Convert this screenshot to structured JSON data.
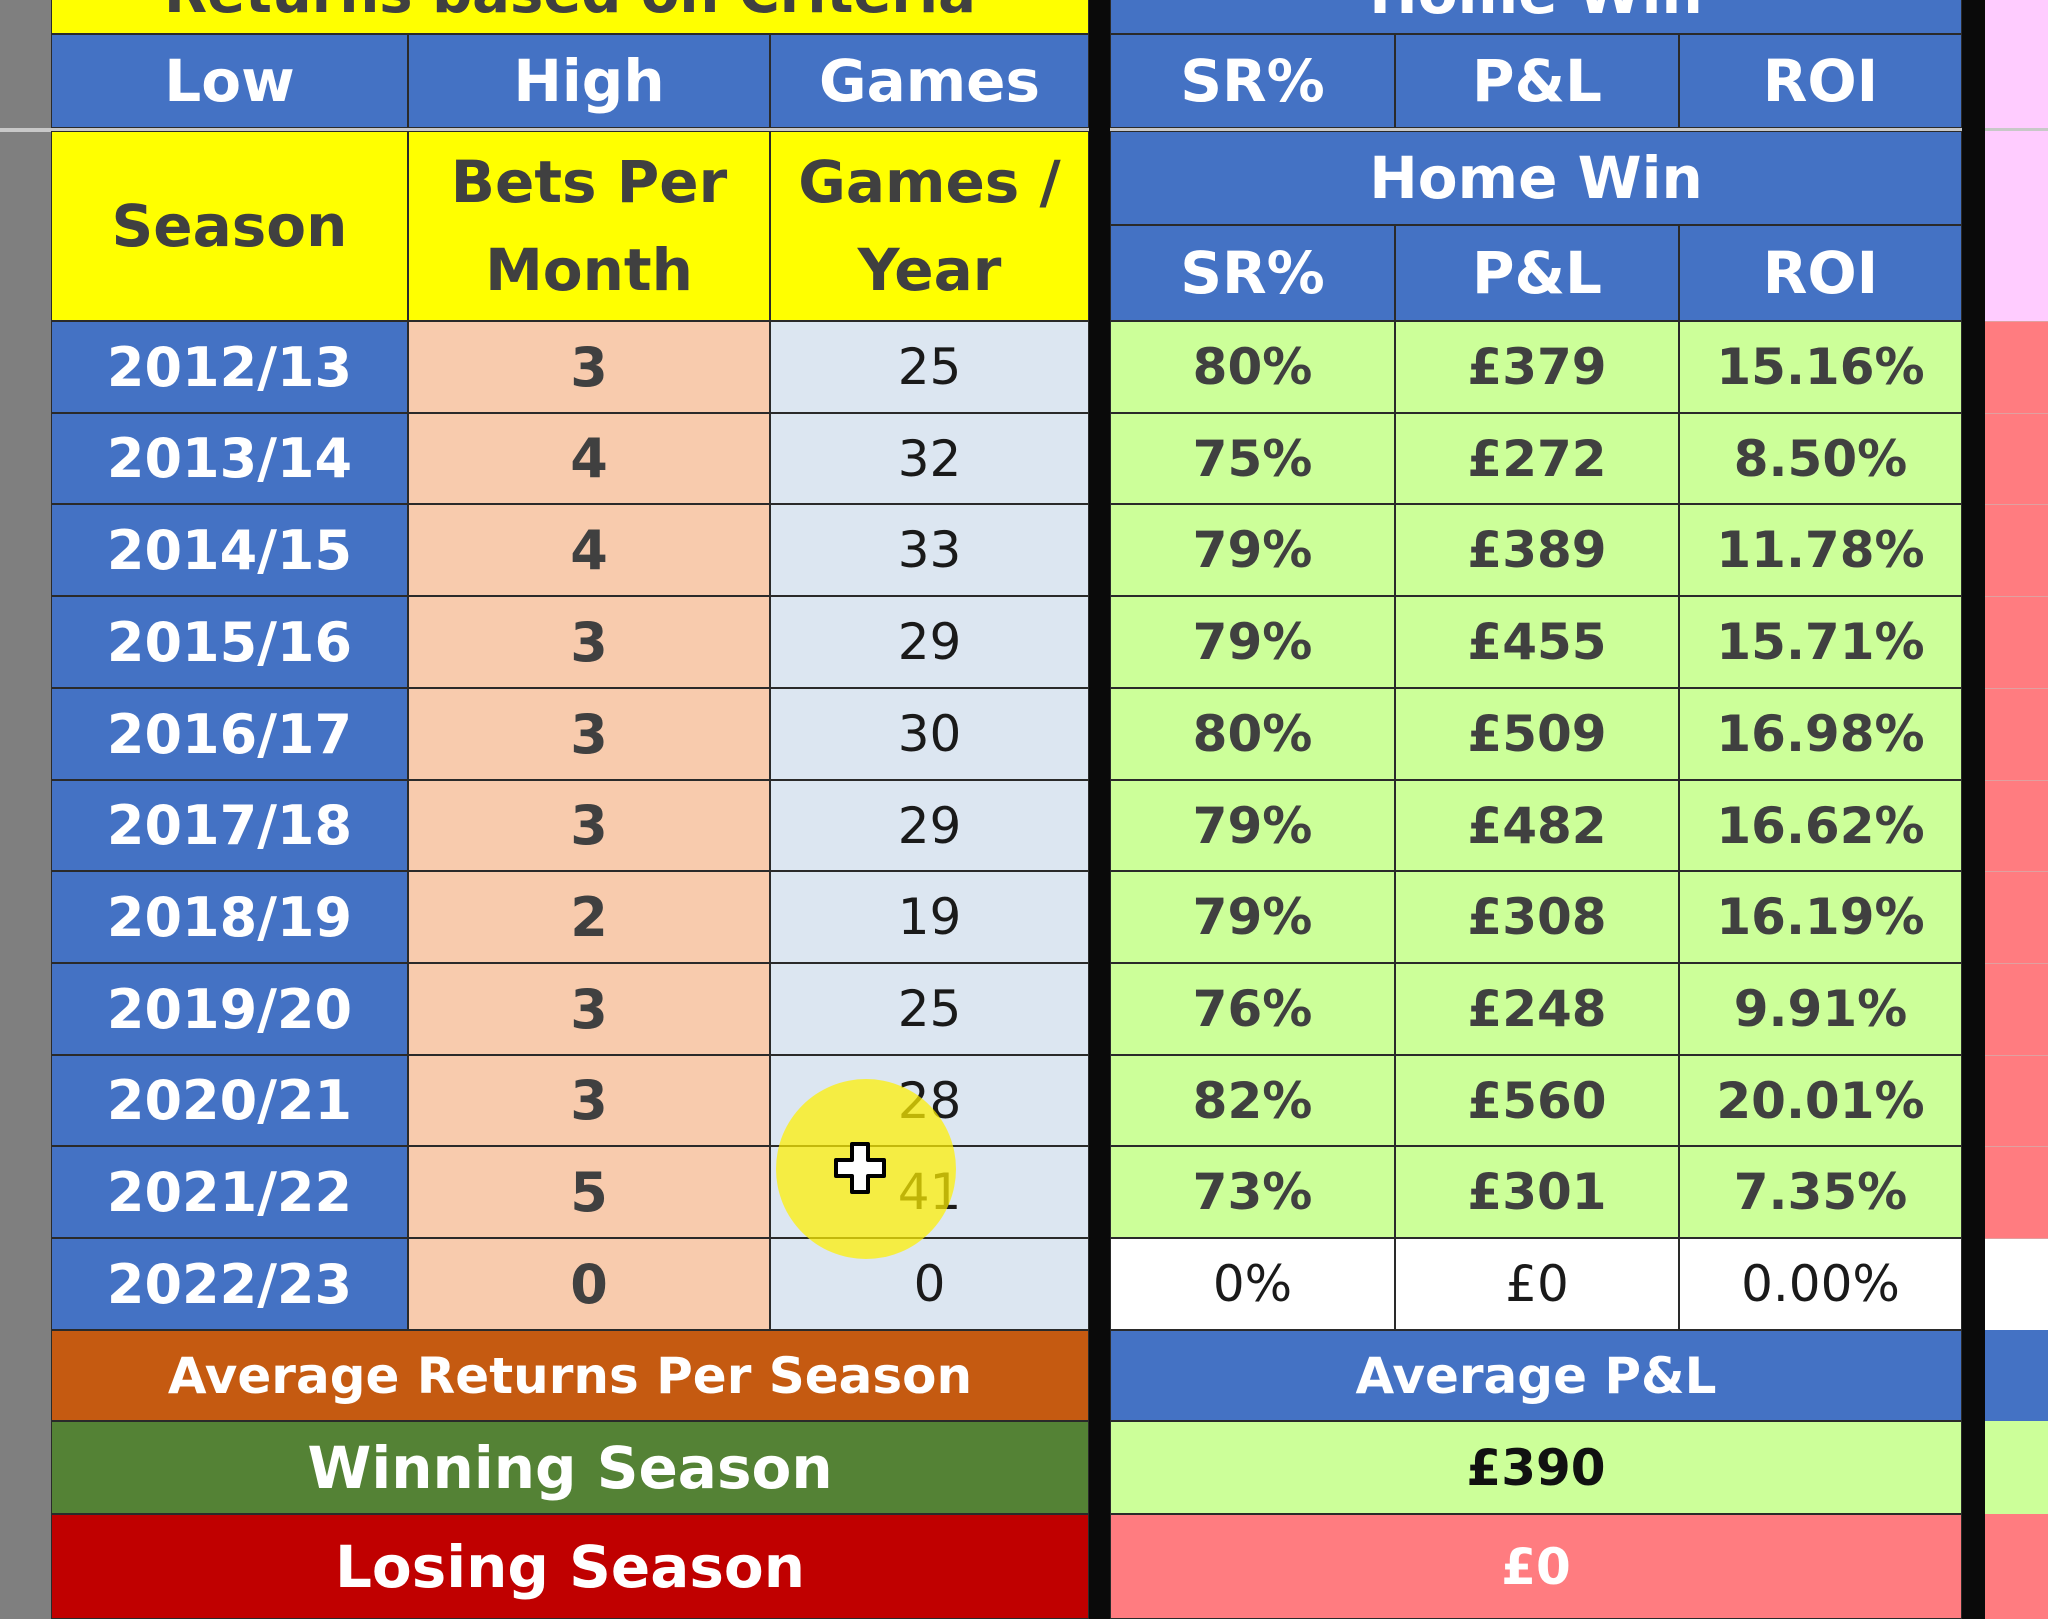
{
  "top": {
    "left_title": "Returns based on Criteria",
    "right_title": "Home Win",
    "criteria_headers": [
      "Low",
      "High",
      "Games"
    ],
    "metric_headers": [
      "SR%",
      "P&L",
      "ROI"
    ]
  },
  "table": {
    "season_header": "Season",
    "bets_header_line1": "Bets Per",
    "bets_header_line2": "Month",
    "games_header_line1": "Games /",
    "games_header_line2": "Year",
    "group_header": "Home Win",
    "metric_headers": [
      "SR%",
      "P&L",
      "ROI"
    ],
    "rows": [
      {
        "season": "2012/13",
        "bets": "3",
        "games": "25",
        "sr": "80%",
        "pl": "£379",
        "roi": "15.16%"
      },
      {
        "season": "2013/14",
        "bets": "4",
        "games": "32",
        "sr": "75%",
        "pl": "£272",
        "roi": "8.50%"
      },
      {
        "season": "2014/15",
        "bets": "4",
        "games": "33",
        "sr": "79%",
        "pl": "£389",
        "roi": "11.78%"
      },
      {
        "season": "2015/16",
        "bets": "3",
        "games": "29",
        "sr": "79%",
        "pl": "£455",
        "roi": "15.71%"
      },
      {
        "season": "2016/17",
        "bets": "3",
        "games": "30",
        "sr": "80%",
        "pl": "£509",
        "roi": "16.98%"
      },
      {
        "season": "2017/18",
        "bets": "3",
        "games": "29",
        "sr": "79%",
        "pl": "£482",
        "roi": "16.62%"
      },
      {
        "season": "2018/19",
        "bets": "2",
        "games": "19",
        "sr": "79%",
        "pl": "£308",
        "roi": "16.19%"
      },
      {
        "season": "2019/20",
        "bets": "3",
        "games": "25",
        "sr": "76%",
        "pl": "£248",
        "roi": "9.91%"
      },
      {
        "season": "2020/21",
        "bets": "3",
        "games": "28",
        "sr": "82%",
        "pl": "£560",
        "roi": "20.01%"
      },
      {
        "season": "2021/22",
        "bets": "5",
        "games": "41",
        "sr": "73%",
        "pl": "£301",
        "roi": "7.35%"
      },
      {
        "season": "2022/23",
        "bets": "0",
        "games": "0",
        "sr": "0%",
        "pl": "£0",
        "roi": "0.00%"
      }
    ]
  },
  "summary": {
    "avg_label": "Average Returns Per Season",
    "avg_pl_label": "Average P&L",
    "winning_label": "Winning Season",
    "winning_value": "£390",
    "losing_label": "Losing Season",
    "losing_value": "£0"
  },
  "colors": {
    "header_blue": "#4472c4",
    "header_yellow": "#ffff00",
    "bets_peach": "#f8cbad",
    "games_lightblue": "#dce6f1",
    "win_green_cells": "#ccff99",
    "avg_orange": "#c55a11",
    "winning_green": "#548235",
    "losing_red": "#c00000",
    "loss_pink": "#ff7c80"
  },
  "cursor_icon": "move-cursor-icon"
}
